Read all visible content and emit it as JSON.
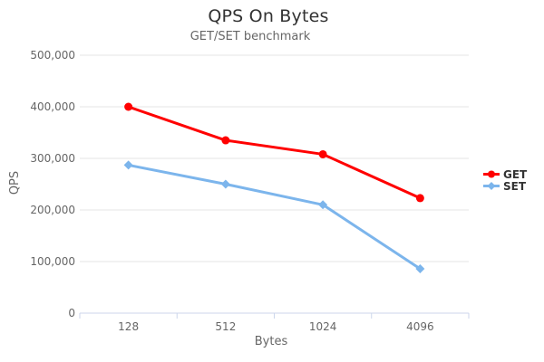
{
  "chart_data": {
    "type": "line",
    "title": "QPS On Bytes",
    "subtitle": "GET/SET benchmark",
    "xlabel": "Bytes",
    "ylabel": "QPS",
    "categories": [
      "128",
      "512",
      "1024",
      "4096"
    ],
    "series": [
      {
        "name": "GET",
        "color": "#ff0000",
        "marker": "circle",
        "values": [
          400000,
          335000,
          308000,
          223000
        ]
      },
      {
        "name": "SET",
        "color": "#7cb5ec",
        "marker": "diamond",
        "values": [
          287000,
          250000,
          210000,
          86000
        ]
      }
    ],
    "ylim": [
      0,
      500000
    ],
    "ytick_interval": 100000,
    "ytick_labels": [
      "0",
      "100,000",
      "200,000",
      "300,000",
      "400,000",
      "500,000"
    ],
    "grid": true,
    "legend_position": "right",
    "colors": {
      "grid": "#e6e6e6",
      "axis_line": "#ccd6eb",
      "tick_text": "#666666",
      "title_text": "#333333",
      "subtitle_text": "#666666",
      "legend_text": "#333333",
      "background": "#ffffff"
    }
  }
}
